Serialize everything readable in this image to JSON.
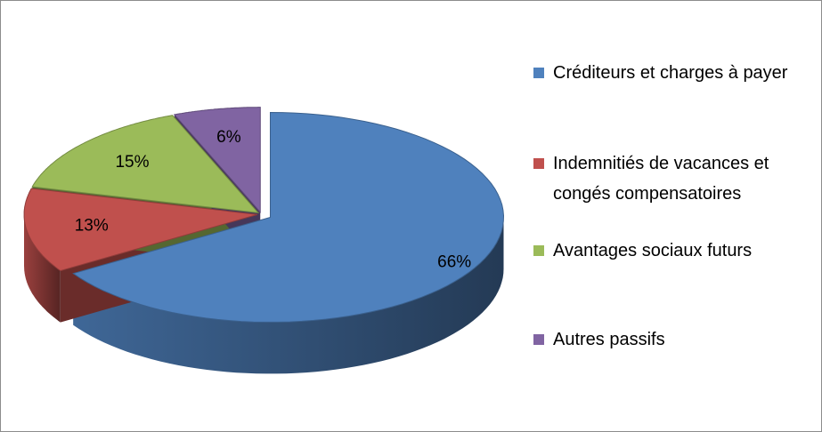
{
  "chart_data": {
    "type": "pie",
    "categories": [
      "Créditeurs et charges à payer",
      "Indemnitiés de vacances et congés compensatoires",
      "Avantages sociaux futurs",
      "Autres passifs"
    ],
    "values": [
      66,
      13,
      15,
      6
    ],
    "value_labels": [
      "66%",
      "13%",
      "15%",
      "6%"
    ],
    "colors": [
      "#4f81bd",
      "#c0504d",
      "#9bbb59",
      "#8064a2"
    ],
    "legend": "right"
  }
}
